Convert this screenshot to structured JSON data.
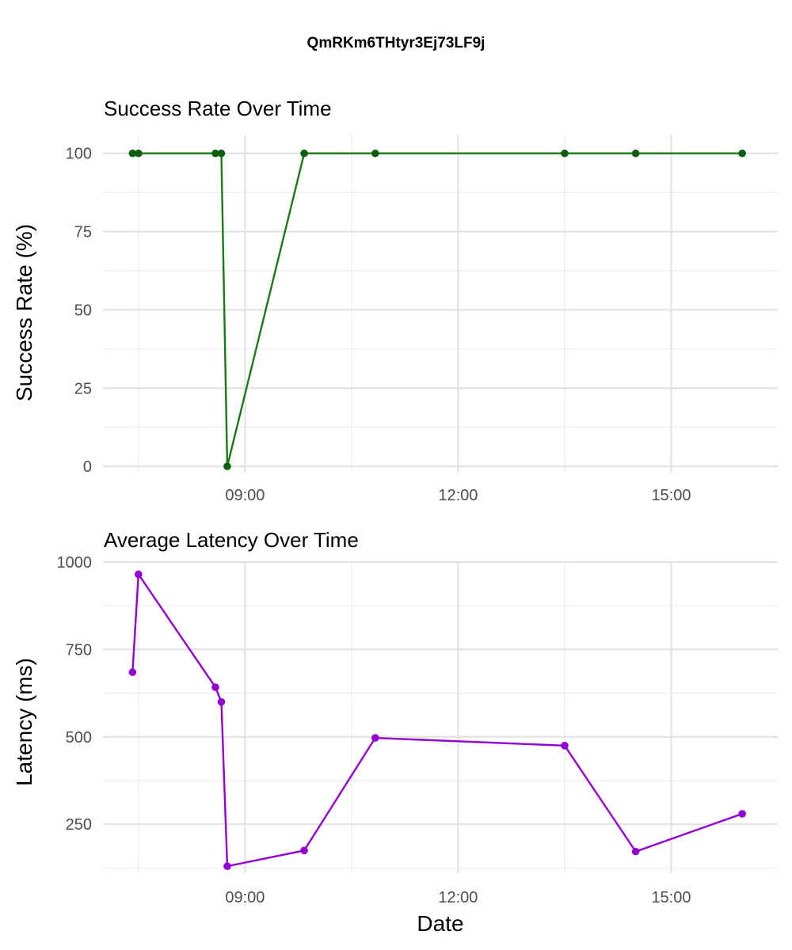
{
  "title": "QmRKm6THtyr3Ej73LF9j",
  "chart_data": [
    {
      "type": "line",
      "title": "Success Rate Over Time",
      "xlabel": "",
      "ylabel": "Success Rate (%)",
      "x_tick_labels": [
        "09:00",
        "12:00",
        "15:00"
      ],
      "y_tick_labels": [
        "0",
        "25",
        "50",
        "75",
        "100"
      ],
      "ylim": [
        -2,
        106
      ],
      "grid": true,
      "color": "#1a7a1a",
      "point_color": "#0d5e0d",
      "series": [
        {
          "x": [
            "07:25",
            "07:30",
            "08:35",
            "08:40",
            "08:45",
            "09:50",
            "10:50",
            "13:30",
            "14:30",
            "16:00"
          ],
          "y": [
            100,
            100,
            100,
            100,
            0,
            100,
            100,
            100,
            100,
            100
          ]
        }
      ]
    },
    {
      "type": "line",
      "title": "Average Latency Over Time",
      "xlabel": "Date",
      "ylabel": "Latency (ms)",
      "x_tick_labels": [
        "09:00",
        "12:00",
        "15:00"
      ],
      "y_tick_labels": [
        "250",
        "500",
        "750",
        "1000"
      ],
      "ylim": [
        110,
        1000
      ],
      "grid": true,
      "color": "#9400d3",
      "point_color": "#9400d3",
      "series": [
        {
          "x": [
            "07:25",
            "07:30",
            "08:35",
            "08:40",
            "08:45",
            "09:50",
            "10:50",
            "13:30",
            "14:30",
            "16:00"
          ],
          "y": [
            685,
            965,
            642,
            600,
            130,
            175,
            497,
            475,
            172,
            280
          ]
        }
      ]
    }
  ]
}
